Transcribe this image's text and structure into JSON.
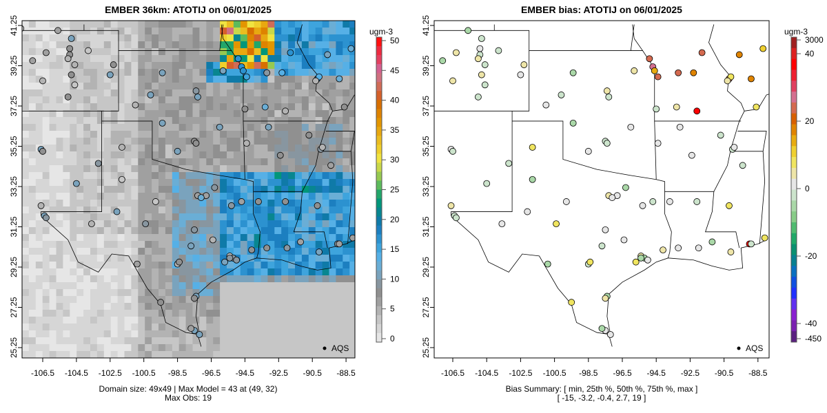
{
  "left_panel": {
    "title": "EMBER 36km: ATOTIJ on 06/01/2025",
    "units": "ugm-3",
    "colorbar_ticks": [
      "0",
      "5",
      "10",
      "15",
      "20",
      "25",
      "30",
      "35",
      "40",
      "45",
      "50"
    ],
    "caption_line1": "Domain size: 49x49 | Max Model = 43 at (49, 32)",
    "caption_line2": "Max Obs: 19",
    "legend_label": "AQS"
  },
  "right_panel": {
    "title": "EMBER bias: ATOTIJ on 06/01/2025",
    "units": "ugm-3",
    "colorbar_ticks": [
      "3000",
      "40",
      "20",
      "0",
      "-20",
      "-40",
      "-450"
    ],
    "caption_line1": "Bias Summary: [ min, 25th %, 50th %, 75th %, max ]",
    "caption_line2": "[ -15,   -3.2,   -0.4,   2.7,   19 ]",
    "legend_label": "AQS"
  },
  "axes": {
    "lon_ticks": [
      "-106.5",
      "-104.5",
      "-102.5",
      "-100.5",
      "-98.5",
      "-96.5",
      "-94.5",
      "-92.5",
      "-90.5",
      "-88.5"
    ],
    "lat_ticks": [
      "25.25",
      "27.25",
      "29.25",
      "31.25",
      "33.25",
      "35.25",
      "37.25",
      "39.25",
      "41.25"
    ]
  },
  "colors": {
    "conc_scale": [
      "#e6e6e6",
      "#d6d6d6",
      "#c6c6c6",
      "#b3b3b3",
      "#a0a0a0",
      "#909090",
      "#8896a0",
      "#7aa3bd",
      "#6aaed6",
      "#56b0e6",
      "#3ea4dd",
      "#2c92d0",
      "#1c7fc0",
      "#0f7aa8",
      "#088690",
      "#02967a",
      "#22a66a",
      "#5cbb5c",
      "#96c951",
      "#c9d84a",
      "#f0e441",
      "#efcf2c",
      "#ebbd20",
      "#e8a810",
      "#e39600",
      "#de8300",
      "#d86f00",
      "#d5602a",
      "#d16c57",
      "#d07080",
      "#d46090",
      "#e44060",
      "#ee2a40",
      "#ff1010"
    ],
    "bias_scale": [
      "#5a2080",
      "#7a20b0",
      "#8a20d0",
      "#6030f0",
      "#2030ff",
      "#1050e0",
      "#0a70c0",
      "#088090",
      "#0a9070",
      "#20a868",
      "#50bb70",
      "#88cc88",
      "#aad8a8",
      "#cce4cc",
      "#e6e6e6",
      "#eee5a8",
      "#f0e560",
      "#efd030",
      "#e8ac10",
      "#e08400",
      "#d86000",
      "#d46a50",
      "#d47090",
      "#e04060",
      "#ee2030",
      "#ff0000",
      "#dd2020",
      "#a02020"
    ]
  }
}
